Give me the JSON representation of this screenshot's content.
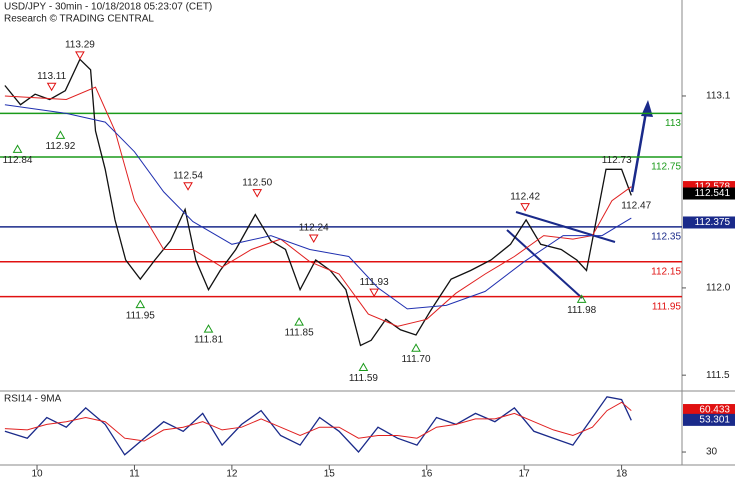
{
  "chart_data": [
    {
      "type": "line",
      "title": "USD/JPY - 30min - 10/18/2018 05:23:07 (CET)",
      "subtitle": "Research © TRADING CENTRAL",
      "xlim": [
        -0.38,
        6.62
      ],
      "ylim": [
        111.415,
        113.65
      ],
      "xticks": [
        {
          "value": 0,
          "label": "10"
        },
        {
          "value": 1,
          "label": "11"
        },
        {
          "value": 2,
          "label": "12"
        },
        {
          "value": 3,
          "label": "15"
        },
        {
          "value": 4,
          "label": "16"
        },
        {
          "value": 5,
          "label": "17"
        },
        {
          "value": 6,
          "label": "18"
        }
      ],
      "yticks": [
        113.1,
        {
          "value": 112,
          "label": "112.0"
        },
        111.5
      ],
      "series": [
        {
          "color": "#111111",
          "x": [
            -0.33,
            -0.17,
            -0.02,
            0.13,
            0.29,
            0.44,
            0.55,
            0.6,
            0.7,
            0.8,
            0.91,
            1.06,
            1.21,
            1.37,
            1.52,
            1.63,
            1.76,
            1.88,
            2.04,
            2.24,
            2.4,
            2.55,
            2.7,
            2.86,
            3.01,
            3.17,
            3.32,
            3.43,
            3.58,
            3.73,
            3.89,
            4.04,
            4.25,
            4.45,
            4.66,
            4.86,
            5.02,
            5.17,
            5.38,
            5.54,
            5.64,
            5.74,
            5.84,
            6.0,
            6.1
          ],
          "values": [
            113.16,
            113.05,
            113.11,
            113.08,
            113.13,
            113.31,
            113.25,
            112.9,
            112.68,
            112.39,
            112.16,
            112.05,
            112.16,
            112.27,
            112.45,
            112.16,
            111.99,
            112.1,
            112.22,
            112.42,
            112.27,
            112.22,
            111.99,
            112.16,
            112.1,
            111.99,
            111.67,
            111.7,
            111.82,
            111.76,
            111.73,
            111.87,
            112.05,
            112.1,
            112.16,
            112.25,
            112.39,
            112.25,
            112.22,
            112.16,
            112.1,
            112.39,
            112.68,
            112.68,
            112.53
          ]
        },
        {
          "color": "#e02020",
          "x": [
            -0.33,
            0.3,
            0.6,
            0.8,
            1.0,
            1.3,
            1.6,
            1.9,
            2.2,
            2.5,
            2.8,
            3.1,
            3.4,
            3.7,
            4.0,
            4.3,
            4.6,
            4.9,
            5.2,
            5.5,
            5.7,
            5.9,
            6.1
          ],
          "values": [
            113.1,
            113.08,
            113.15,
            112.9,
            112.5,
            112.22,
            112.22,
            112.12,
            112.22,
            112.28,
            112.15,
            112.08,
            111.85,
            111.78,
            111.82,
            111.97,
            112.08,
            112.18,
            112.3,
            112.28,
            112.3,
            112.5,
            112.58
          ]
        },
        {
          "color": "#2030b0",
          "x": [
            -0.33,
            0.3,
            0.7,
            1.0,
            1.3,
            1.6,
            2.0,
            2.4,
            2.8,
            3.2,
            3.5,
            3.8,
            4.2,
            4.6,
            5.0,
            5.4,
            5.8,
            6.1
          ],
          "values": [
            113.05,
            113.0,
            112.95,
            112.78,
            112.55,
            112.38,
            112.25,
            112.3,
            112.22,
            112.18,
            112.0,
            111.88,
            111.9,
            111.98,
            112.15,
            112.3,
            112.3,
            112.4
          ]
        }
      ],
      "levels": [
        {
          "value": 113,
          "label": "113",
          "color": "#1a9a1a"
        },
        {
          "value": 112.75,
          "label": "112.75",
          "color": "#1a9a1a"
        },
        {
          "value": 112.35,
          "label": "112.35",
          "color": "#1a2a8a"
        },
        {
          "value": 112.15,
          "label": "112.15",
          "color": "#e01010"
        },
        {
          "value": 111.95,
          "label": "111.95",
          "color": "#e01010"
        }
      ],
      "annotations": [
        {
          "kind": "high",
          "x": 0.44,
          "value": 113.29,
          "label": "113.29"
        },
        {
          "kind": "high",
          "x": 0.15,
          "value": 113.11,
          "label": "113.11"
        },
        {
          "kind": "low",
          "x": -0.2,
          "value": 112.84,
          "label": "112.84"
        },
        {
          "kind": "low",
          "x": 0.24,
          "value": 112.92,
          "label": "112.92"
        },
        {
          "kind": "high",
          "x": 1.55,
          "value": 112.54,
          "label": "112.54"
        },
        {
          "kind": "low",
          "x": 1.06,
          "value": 111.95,
          "label": "111.95"
        },
        {
          "kind": "low",
          "x": 1.76,
          "value": 111.81,
          "label": "111.81"
        },
        {
          "kind": "high",
          "x": 2.26,
          "value": 112.5,
          "label": "112.50"
        },
        {
          "kind": "high",
          "x": 2.84,
          "value": 112.24,
          "label": "112.24"
        },
        {
          "kind": "low",
          "x": 2.69,
          "value": 111.85,
          "label": "111.85"
        },
        {
          "kind": "high",
          "x": 3.46,
          "value": 111.93,
          "label": "111.93"
        },
        {
          "kind": "low",
          "x": 3.35,
          "value": 111.59,
          "label": "111.59"
        },
        {
          "kind": "low",
          "x": 3.89,
          "value": 111.7,
          "label": "111.70"
        },
        {
          "kind": "high",
          "x": 5.01,
          "value": 112.42,
          "label": "112.42"
        },
        {
          "kind": "low",
          "x": 5.59,
          "value": 111.98,
          "label": "111.98"
        },
        {
          "kind": "label",
          "x": 5.95,
          "value": 112.73,
          "label": "112.73"
        },
        {
          "kind": "label",
          "x": 6.15,
          "value": 112.47,
          "label": "112.47"
        }
      ],
      "price_labels": [
        {
          "value": 112.578,
          "color": "#e01010"
        },
        {
          "value": 112.541,
          "color": "#000000"
        },
        {
          "value": 112.375,
          "color": "#1a2a8a"
        }
      ]
    },
    {
      "type": "line",
      "title": "RSI14 - 9MA",
      "xlim": [
        -0.38,
        6.62
      ],
      "ylim": [
        20.6,
        73.5
      ],
      "yticks": [
        30
      ],
      "series": [
        {
          "color": "#1a2a8a",
          "x": [
            -0.33,
            -0.1,
            0.1,
            0.3,
            0.5,
            0.7,
            0.9,
            1.1,
            1.3,
            1.5,
            1.7,
            1.9,
            2.1,
            2.3,
            2.5,
            2.7,
            2.9,
            3.1,
            3.3,
            3.5,
            3.7,
            3.9,
            4.1,
            4.3,
            4.5,
            4.7,
            4.9,
            5.1,
            5.3,
            5.5,
            5.7,
            5.85,
            6.0,
            6.1
          ],
          "values": [
            45,
            40,
            55,
            48,
            62,
            50,
            28,
            40,
            52,
            45,
            58,
            35,
            50,
            60,
            42,
            35,
            55,
            45,
            30,
            48,
            40,
            35,
            55,
            50,
            58,
            52,
            62,
            45,
            40,
            35,
            55,
            70,
            68,
            53
          ]
        },
        {
          "color": "#e02020",
          "x": [
            -0.33,
            -0.1,
            0.1,
            0.3,
            0.5,
            0.7,
            0.9,
            1.1,
            1.3,
            1.5,
            1.7,
            1.9,
            2.1,
            2.3,
            2.5,
            2.7,
            2.9,
            3.1,
            3.3,
            3.5,
            3.7,
            3.9,
            4.1,
            4.3,
            4.5,
            4.7,
            4.9,
            5.1,
            5.3,
            5.5,
            5.7,
            5.85,
            6.0,
            6.1
          ],
          "values": [
            47,
            46,
            50,
            52,
            55,
            52,
            40,
            38,
            46,
            48,
            52,
            46,
            48,
            54,
            48,
            42,
            48,
            48,
            40,
            42,
            42,
            40,
            48,
            50,
            54,
            54,
            58,
            52,
            46,
            42,
            48,
            60,
            66,
            60
          ]
        }
      ],
      "price_labels": [
        {
          "value": 60.433,
          "color": "#e01010"
        },
        {
          "value": 53.301,
          "color": "#1a2a8a"
        }
      ]
    }
  ]
}
